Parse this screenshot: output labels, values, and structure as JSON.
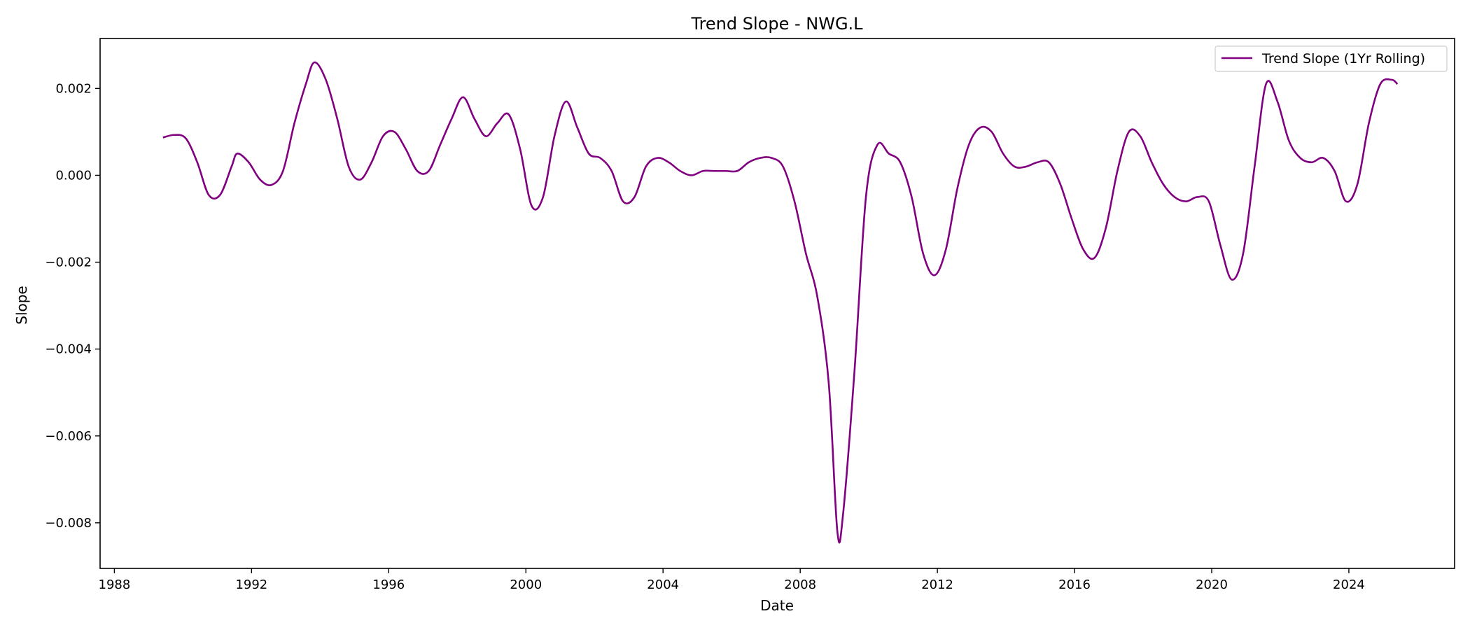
{
  "chart_data": {
    "type": "line",
    "title": "Trend Slope - NWG.L",
    "xlabel": "Date",
    "ylabel": "Slope",
    "x_ticks": [
      "1988",
      "1992",
      "1996",
      "2000",
      "2004",
      "2008",
      "2012",
      "2016",
      "2020",
      "2024"
    ],
    "y_ticks": [
      "−0.008",
      "−0.006",
      "−0.004",
      "−0.002",
      "0.000",
      "0.002"
    ],
    "xlim": [
      "1987-08",
      "2027-02"
    ],
    "ylim": [
      -0.00905,
      0.00315
    ],
    "grid": false,
    "legend_position": "top-right",
    "series": [
      {
        "name": "Trend Slope (1Yr Rolling)",
        "color": "#800080",
        "points": [
          [
            "1989-06",
            0.00087
          ],
          [
            "1989-10",
            0.00093
          ],
          [
            "1990-02",
            0.00085
          ],
          [
            "1990-06",
            0.0003
          ],
          [
            "1990-10",
            -0.00045
          ],
          [
            "1991-02",
            -0.00045
          ],
          [
            "1991-06",
            0.0002
          ],
          [
            "1991-08",
            0.0005
          ],
          [
            "1991-12",
            0.0003
          ],
          [
            "1992-04",
            -0.0001
          ],
          [
            "1992-08",
            -0.00022
          ],
          [
            "1992-12",
            0.0001
          ],
          [
            "1993-04",
            0.0012
          ],
          [
            "1993-08",
            0.0021
          ],
          [
            "1993-11",
            0.0026
          ],
          [
            "1994-03",
            0.0022
          ],
          [
            "1994-07",
            0.0013
          ],
          [
            "1994-11",
            0.0002
          ],
          [
            "1995-03",
            -0.0001
          ],
          [
            "1995-07",
            0.0003
          ],
          [
            "1995-11",
            0.0009
          ],
          [
            "1996-03",
            0.001
          ],
          [
            "1996-07",
            0.0006
          ],
          [
            "1996-11",
            0.0001
          ],
          [
            "1997-03",
            0.0001
          ],
          [
            "1997-07",
            0.0007
          ],
          [
            "1997-11",
            0.0013
          ],
          [
            "1998-03",
            0.0018
          ],
          [
            "1998-07",
            0.0013
          ],
          [
            "1998-11",
            0.0009
          ],
          [
            "1999-03",
            0.0012
          ],
          [
            "1999-07",
            0.0014
          ],
          [
            "1999-11",
            0.0006
          ],
          [
            "2000-03",
            -0.0007
          ],
          [
            "2000-07",
            -0.0005
          ],
          [
            "2000-11",
            0.0009
          ],
          [
            "2001-03",
            0.0017
          ],
          [
            "2001-07",
            0.0011
          ],
          [
            "2001-11",
            0.0005
          ],
          [
            "2002-03",
            0.0004
          ],
          [
            "2002-07",
            0.0001
          ],
          [
            "2002-11",
            -0.0006
          ],
          [
            "2003-03",
            -0.0005
          ],
          [
            "2003-07",
            0.0002
          ],
          [
            "2003-11",
            0.0004
          ],
          [
            "2004-03",
            0.0003
          ],
          [
            "2004-07",
            0.0001
          ],
          [
            "2004-11",
            0.0
          ],
          [
            "2005-03",
            0.0001
          ],
          [
            "2005-07",
            0.0001
          ],
          [
            "2005-11",
            0.0001
          ],
          [
            "2006-03",
            0.0001
          ],
          [
            "2006-07",
            0.0003
          ],
          [
            "2006-11",
            0.0004
          ],
          [
            "2007-03",
            0.0004
          ],
          [
            "2007-07",
            0.0002
          ],
          [
            "2007-11",
            -0.0006
          ],
          [
            "2008-03",
            -0.0018
          ],
          [
            "2008-07",
            -0.0028
          ],
          [
            "2008-11",
            -0.0048
          ],
          [
            "2009-02",
            -0.0082
          ],
          [
            "2009-04",
            -0.0078
          ],
          [
            "2009-08",
            -0.0045
          ],
          [
            "2009-12",
            -0.0005
          ],
          [
            "2010-04",
            0.0007
          ],
          [
            "2010-08",
            0.0005
          ],
          [
            "2010-12",
            0.0003
          ],
          [
            "2011-04",
            -0.0005
          ],
          [
            "2011-08",
            -0.0018
          ],
          [
            "2011-12",
            -0.0023
          ],
          [
            "2012-04",
            -0.0017
          ],
          [
            "2012-08",
            -0.0003
          ],
          [
            "2012-12",
            0.0007
          ],
          [
            "2013-04",
            0.0011
          ],
          [
            "2013-08",
            0.001
          ],
          [
            "2013-12",
            0.0005
          ],
          [
            "2014-04",
            0.0002
          ],
          [
            "2014-08",
            0.0002
          ],
          [
            "2014-12",
            0.0003
          ],
          [
            "2015-04",
            0.0003
          ],
          [
            "2015-08",
            -0.0002
          ],
          [
            "2015-12",
            -0.001
          ],
          [
            "2016-04",
            -0.0017
          ],
          [
            "2016-08",
            -0.0019
          ],
          [
            "2016-12",
            -0.0012
          ],
          [
            "2017-04",
            0.0001
          ],
          [
            "2017-08",
            0.001
          ],
          [
            "2017-12",
            0.0009
          ],
          [
            "2018-04",
            0.0003
          ],
          [
            "2018-08",
            -0.0002
          ],
          [
            "2018-12",
            -0.0005
          ],
          [
            "2019-04",
            -0.0006
          ],
          [
            "2019-08",
            -0.0005
          ],
          [
            "2019-12",
            -0.0006
          ],
          [
            "2020-04",
            -0.0016
          ],
          [
            "2020-08",
            -0.0024
          ],
          [
            "2020-12",
            -0.0018
          ],
          [
            "2021-04",
            0.0002
          ],
          [
            "2021-08",
            0.0021
          ],
          [
            "2021-12",
            0.0017
          ],
          [
            "2022-04",
            0.0008
          ],
          [
            "2022-08",
            0.0004
          ],
          [
            "2022-12",
            0.0003
          ],
          [
            "2023-04",
            0.0004
          ],
          [
            "2023-08",
            0.0001
          ],
          [
            "2023-12",
            -0.0006
          ],
          [
            "2024-04",
            -0.0002
          ],
          [
            "2024-08",
            0.0012
          ],
          [
            "2024-12",
            0.0021
          ],
          [
            "2025-04",
            0.0022
          ],
          [
            "2025-06",
            0.0021
          ]
        ]
      }
    ]
  }
}
